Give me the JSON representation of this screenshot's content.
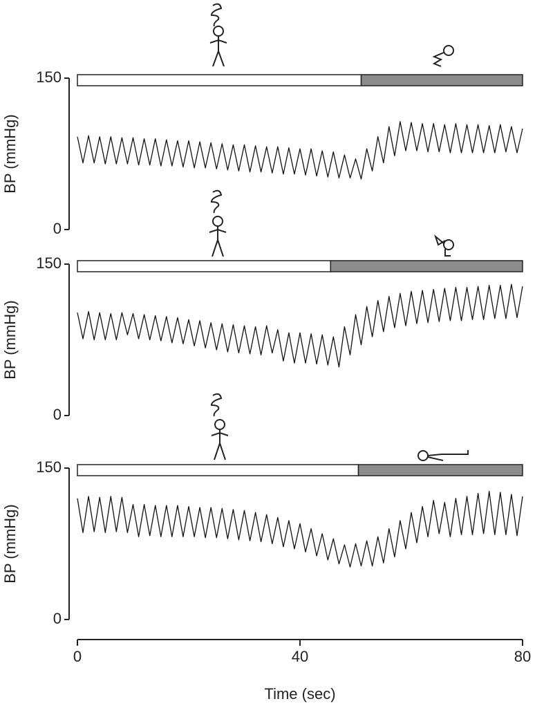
{
  "chart_data": [
    {
      "type": "line",
      "ylabel": "BP (mmHg)",
      "ylim": [
        0,
        150
      ],
      "yticks": [
        0,
        150
      ],
      "xlim": [
        0,
        80
      ],
      "color": "#111111",
      "phases": [
        {
          "start": 0,
          "end": 51,
          "color": "#ffffff"
        },
        {
          "start": 51,
          "end": 80,
          "color": "#8c8c8c"
        }
      ],
      "x": [
        0,
        1,
        2,
        3,
        4,
        5,
        6,
        7,
        8,
        9,
        10,
        11,
        12,
        13,
        14,
        15,
        16,
        17,
        18,
        19,
        20,
        21,
        22,
        23,
        24,
        25,
        26,
        27,
        28,
        29,
        30,
        31,
        32,
        33,
        34,
        35,
        36,
        37,
        38,
        39,
        40,
        41,
        42,
        43,
        44,
        45,
        46,
        47,
        48,
        49,
        50,
        51,
        52,
        53,
        54,
        55,
        56,
        57,
        58,
        59,
        60,
        61,
        62,
        63,
        64,
        65,
        66,
        67,
        68,
        69,
        70,
        71,
        72,
        73,
        74,
        75,
        76,
        77,
        78,
        79,
        80
      ],
      "values": [
        92,
        66,
        93,
        66,
        92,
        65,
        92,
        65,
        91,
        65,
        91,
        64,
        90,
        64,
        90,
        63,
        89,
        63,
        88,
        62,
        88,
        61,
        87,
        61,
        86,
        60,
        85,
        59,
        84,
        58,
        84,
        57,
        83,
        57,
        82,
        56,
        82,
        55,
        81,
        55,
        80,
        54,
        80,
        53,
        78,
        52,
        77,
        51,
        74,
        51,
        70,
        50,
        80,
        58,
        92,
        66,
        102,
        73,
        107,
        78,
        106,
        78,
        105,
        77,
        105,
        77,
        104,
        76,
        105,
        76,
        104,
        76,
        104,
        76,
        103,
        76,
        104,
        77,
        102,
        76,
        100
      ]
    },
    {
      "type": "line",
      "ylabel": "BP (mmHg)",
      "ylim": [
        0,
        150
      ],
      "yticks": [
        0,
        150
      ],
      "xlim": [
        0,
        80
      ],
      "color": "#111111",
      "phases": [
        {
          "start": 0,
          "end": 45.5,
          "color": "#ffffff"
        },
        {
          "start": 45.5,
          "end": 80,
          "color": "#8c8c8c"
        }
      ],
      "x": [
        0,
        1,
        2,
        3,
        4,
        5,
        6,
        7,
        8,
        9,
        10,
        11,
        12,
        13,
        14,
        15,
        16,
        17,
        18,
        19,
        20,
        21,
        22,
        23,
        24,
        25,
        26,
        27,
        28,
        29,
        30,
        31,
        32,
        33,
        34,
        35,
        36,
        37,
        38,
        39,
        40,
        41,
        42,
        43,
        44,
        45,
        46,
        47,
        48,
        49,
        50,
        51,
        52,
        53,
        54,
        55,
        56,
        57,
        58,
        59,
        60,
        61,
        62,
        63,
        64,
        65,
        66,
        67,
        68,
        69,
        70,
        71,
        72,
        73,
        74,
        75,
        76,
        77,
        78,
        79,
        80
      ],
      "values": [
        102,
        76,
        103,
        75,
        102,
        75,
        101,
        75,
        102,
        80,
        101,
        76,
        100,
        75,
        99,
        74,
        98,
        72,
        97,
        71,
        95,
        69,
        94,
        67,
        92,
        65,
        91,
        63,
        90,
        62,
        89,
        61,
        88,
        60,
        89,
        62,
        85,
        54,
        82,
        52,
        82,
        52,
        81,
        51,
        80,
        50,
        78,
        48,
        88,
        60,
        100,
        70,
        108,
        78,
        114,
        83,
        118,
        87,
        121,
        89,
        123,
        91,
        124,
        92,
        125,
        93,
        126,
        94,
        127,
        94,
        127,
        95,
        128,
        95,
        129,
        96,
        129,
        96,
        130,
        97,
        128
      ]
    },
    {
      "type": "line",
      "ylabel": "BP (mmHg)",
      "ylim": [
        0,
        150
      ],
      "yticks": [
        0,
        150
      ],
      "xlim": [
        0,
        80
      ],
      "xticks": [
        0,
        40,
        80
      ],
      "xlabel": "Time (sec)",
      "color": "#111111",
      "phases": [
        {
          "start": 0,
          "end": 50.5,
          "color": "#ffffff"
        },
        {
          "start": 50.5,
          "end": 80,
          "color": "#8c8c8c"
        }
      ],
      "x": [
        0,
        1,
        2,
        3,
        4,
        5,
        6,
        7,
        8,
        9,
        10,
        11,
        12,
        13,
        14,
        15,
        16,
        17,
        18,
        19,
        20,
        21,
        22,
        23,
        24,
        25,
        26,
        27,
        28,
        29,
        30,
        31,
        32,
        33,
        34,
        35,
        36,
        37,
        38,
        39,
        40,
        41,
        42,
        43,
        44,
        45,
        46,
        47,
        48,
        49,
        50,
        51,
        52,
        53,
        54,
        55,
        56,
        57,
        58,
        59,
        60,
        61,
        62,
        63,
        64,
        65,
        66,
        67,
        68,
        69,
        70,
        71,
        72,
        73,
        74,
        75,
        76,
        77,
        78,
        79,
        80
      ],
      "values": [
        120,
        86,
        122,
        87,
        121,
        86,
        122,
        87,
        121,
        86,
        114,
        82,
        114,
        83,
        113,
        82,
        113,
        82,
        113,
        82,
        112,
        82,
        111,
        81,
        111,
        81,
        110,
        80,
        109,
        79,
        108,
        78,
        106,
        77,
        104,
        75,
        101,
        72,
        98,
        70,
        95,
        67,
        90,
        63,
        85,
        59,
        80,
        55,
        74,
        52,
        75,
        53,
        78,
        53,
        82,
        56,
        90,
        62,
        98,
        70,
        106,
        76,
        112,
        82,
        118,
        85,
        116,
        82,
        120,
        84,
        122,
        84,
        125,
        85,
        127,
        84,
        126,
        84,
        124,
        83,
        122
      ]
    }
  ]
}
